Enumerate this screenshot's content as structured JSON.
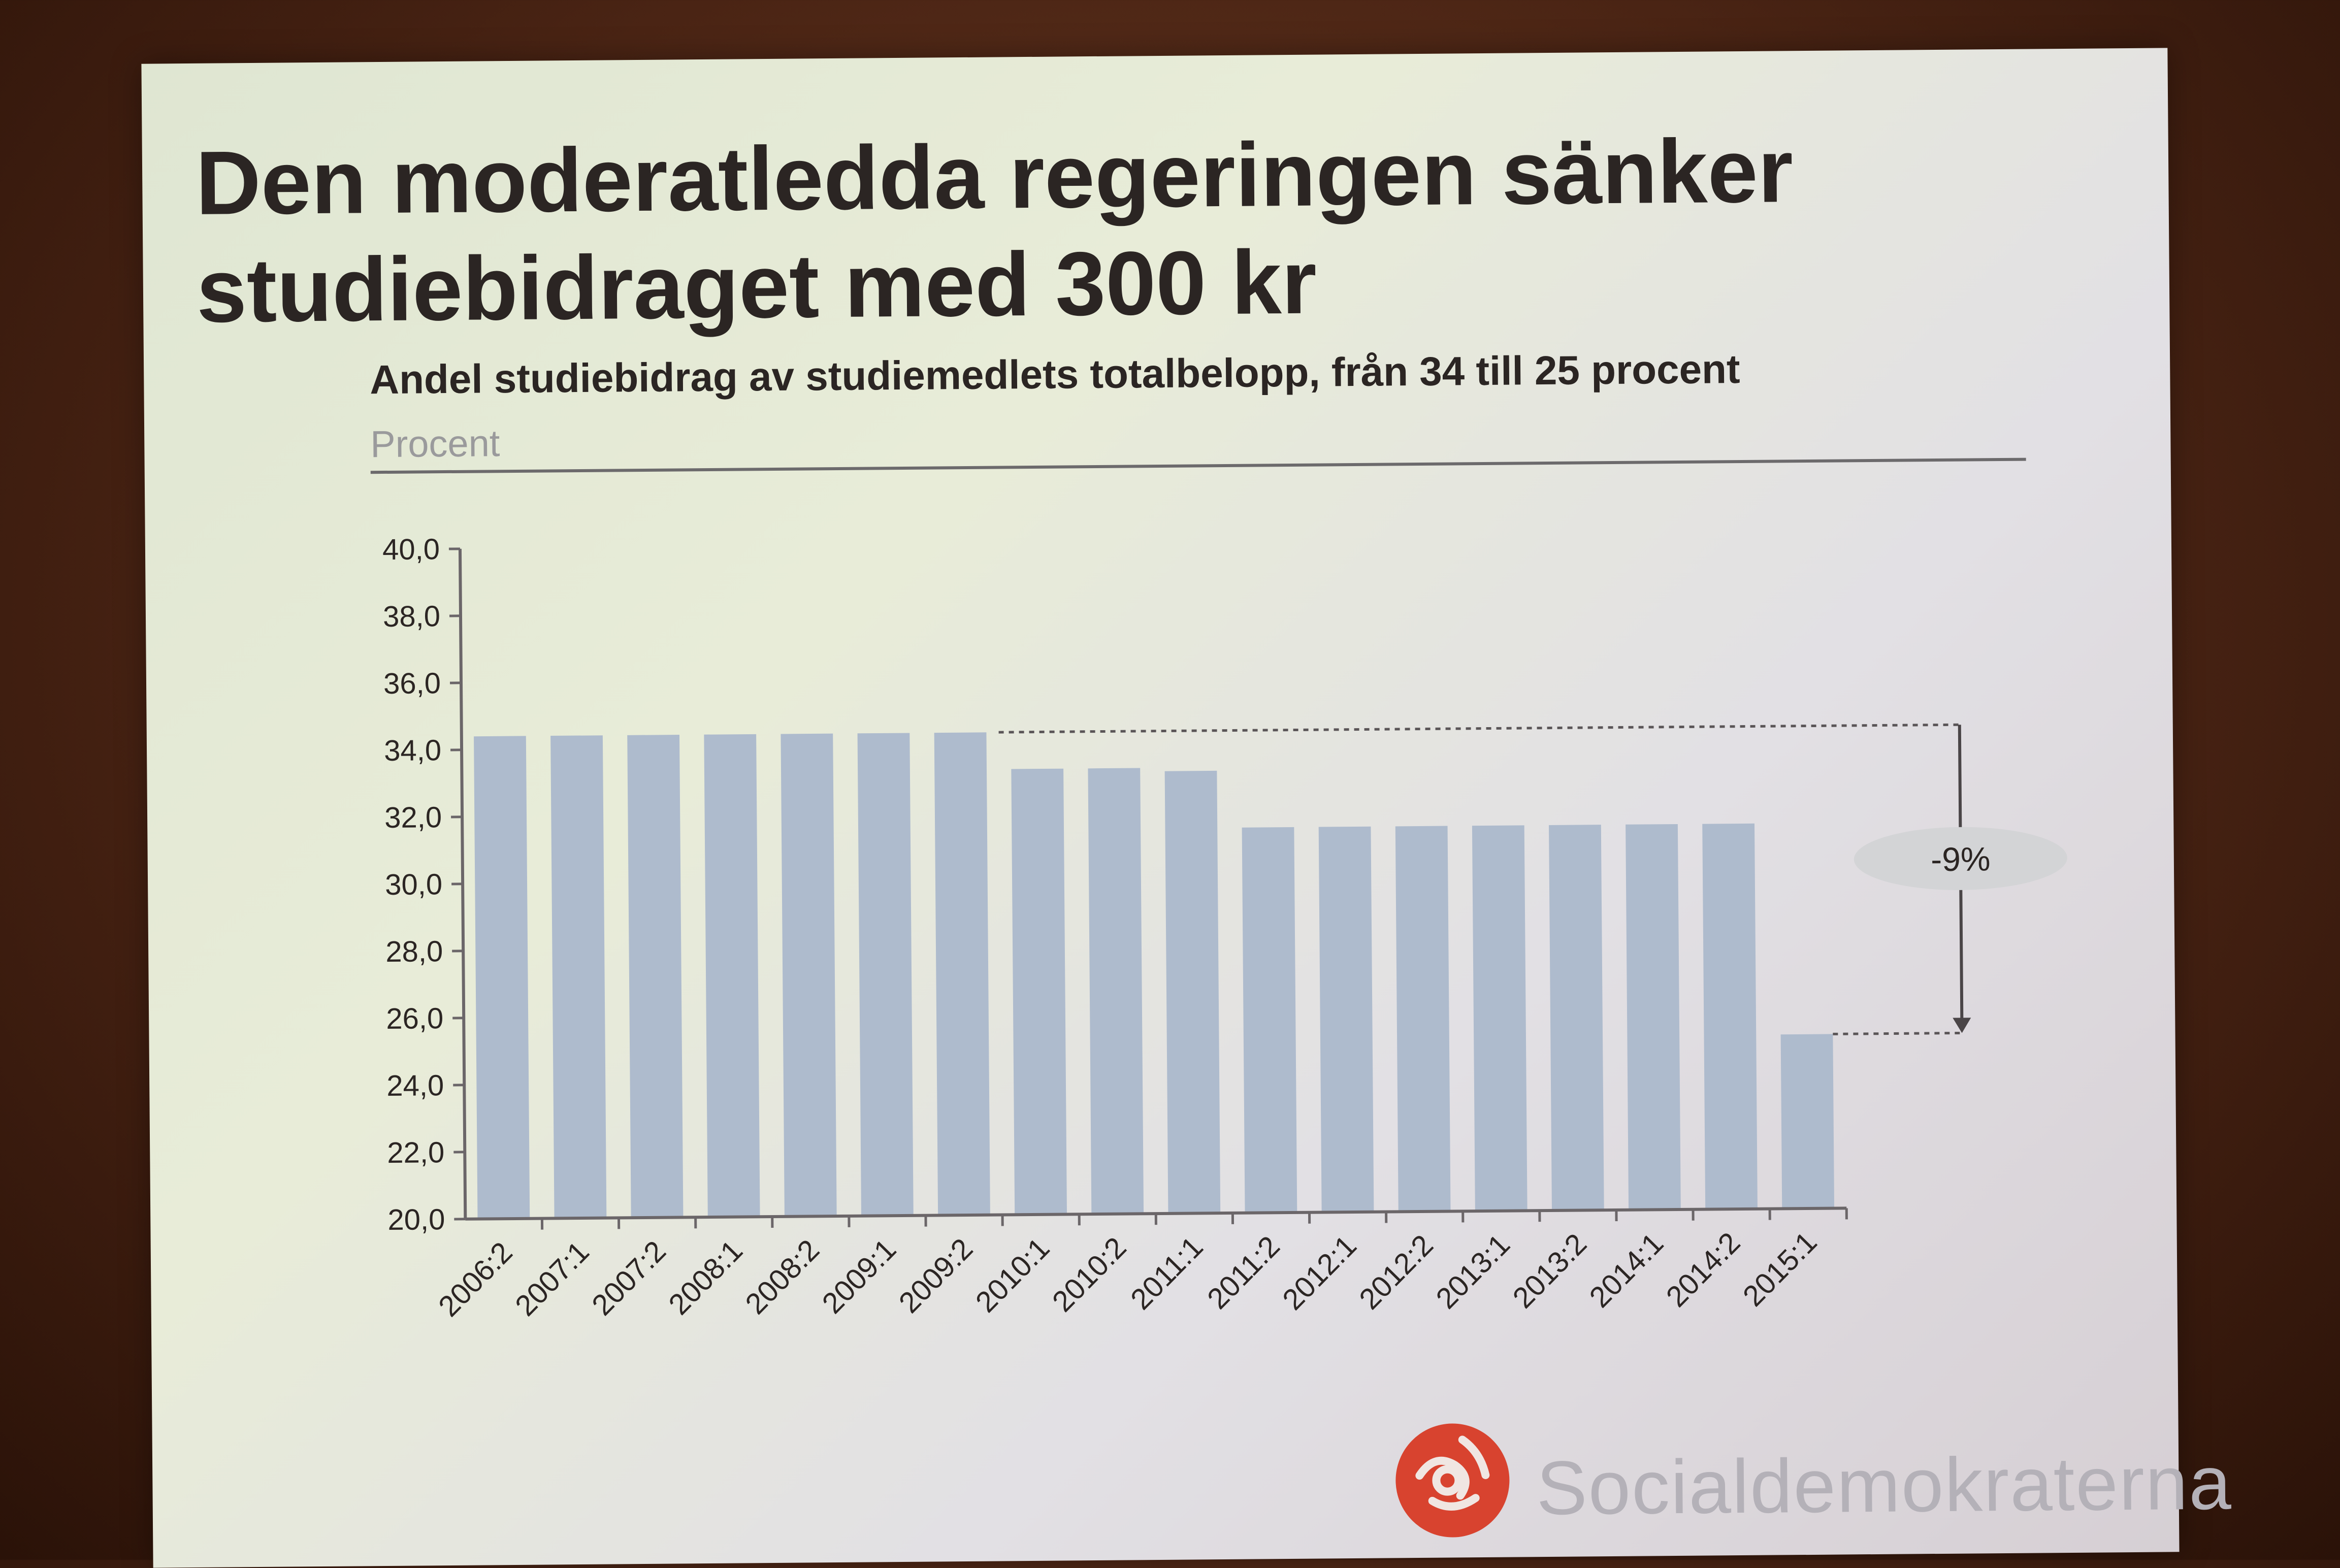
{
  "slide": {
    "title": "Den moderatledda regeringen sänker studiebidraget med 300 kr",
    "brand": "Socialdemokraterna"
  },
  "colors": {
    "bar": "#aebbcd",
    "axis": "#6b6669",
    "text": "#2b2523",
    "logo_red": "#d8432f"
  },
  "chart_data": {
    "type": "bar",
    "title": "Andel studiebidrag av studiemedlets totalbelopp, från 34 till 25 procent",
    "ylabel": "Procent",
    "xlabel": "",
    "ylim": [
      20,
      40
    ],
    "yticks": [
      "40,0",
      "38,0",
      "36,0",
      "34,0",
      "32,0",
      "30,0",
      "28,0",
      "26,0",
      "24,0",
      "22,0",
      "20,0"
    ],
    "categories": [
      "2006:2",
      "2007:1",
      "2007:2",
      "2008:1",
      "2008:2",
      "2009:1",
      "2009:2",
      "2010:1",
      "2010:2",
      "2011:1",
      "2011:2",
      "2012:1",
      "2012:2",
      "2013:1",
      "2013:2",
      "2014:1",
      "2014:2",
      "2015:1"
    ],
    "values": [
      34.4,
      34.4,
      34.4,
      34.4,
      34.4,
      34.4,
      34.4,
      33.3,
      33.3,
      33.2,
      31.5,
      31.5,
      31.5,
      31.5,
      31.5,
      31.5,
      31.5,
      25.2
    ],
    "annotation": {
      "label": "-9%",
      "from": 34.4,
      "to": 25.2
    },
    "grid": false,
    "legend": "none"
  }
}
